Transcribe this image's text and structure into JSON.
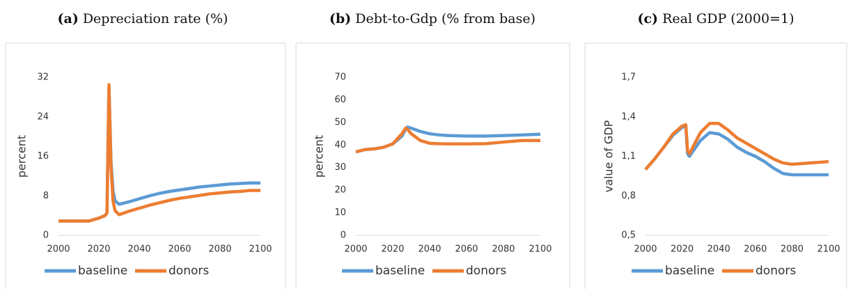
{
  "chart_data": [
    {
      "type": "line",
      "panel_label": "(a)",
      "title": "Depreciation rate (%)",
      "y_label": "percent",
      "x": [
        2000,
        2005,
        2010,
        2015,
        2020,
        2023,
        2024,
        2025,
        2026,
        2027,
        2028,
        2030,
        2035,
        2040,
        2045,
        2050,
        2055,
        2060,
        2065,
        2070,
        2075,
        2080,
        2085,
        2090,
        2095,
        2100
      ],
      "series": [
        {
          "name": "baseline",
          "color": "#5b9bd5",
          "values": [
            2.9,
            2.9,
            2.9,
            2.9,
            3.5,
            4,
            4.5,
            30,
            15,
            9,
            7,
            6.3,
            6.8,
            7.4,
            8,
            8.5,
            8.9,
            9.2,
            9.5,
            9.8,
            10,
            10.2,
            10.4,
            10.5,
            10.6,
            10.6
          ]
        },
        {
          "name": "donors",
          "color": "#ed7d31",
          "values": [
            2.9,
            2.9,
            2.9,
            2.9,
            3.5,
            4,
            4.5,
            30.5,
            14,
            7,
            5,
            4.2,
            4.9,
            5.5,
            6.1,
            6.6,
            7.1,
            7.5,
            7.8,
            8.1,
            8.4,
            8.6,
            8.8,
            8.9,
            9.1,
            9.1
          ]
        }
      ],
      "xlim": [
        2000,
        2100
      ],
      "xticks": [
        2000,
        2020,
        2040,
        2060,
        2080,
        2100
      ],
      "ylim": [
        0,
        32
      ],
      "yticks": [
        0,
        8,
        16,
        24,
        32
      ]
    },
    {
      "type": "line",
      "panel_label": "(b)",
      "title": "Debt-to-Gdp (% from base)",
      "y_label": "percent",
      "x": [
        2000,
        2005,
        2010,
        2015,
        2020,
        2025,
        2027,
        2028,
        2030,
        2035,
        2040,
        2045,
        2050,
        2060,
        2070,
        2080,
        2090,
        2100
      ],
      "series": [
        {
          "name": "baseline",
          "color": "#5b9bd5",
          "values": [
            37,
            38,
            38.3,
            39,
            40.5,
            44,
            47,
            48,
            47.5,
            46,
            45,
            44.5,
            44.2,
            44,
            44,
            44.2,
            44.5,
            44.8
          ]
        },
        {
          "name": "donors",
          "color": "#ed7d31",
          "values": [
            37,
            38,
            38.3,
            39,
            40.5,
            45,
            47.5,
            47,
            45,
            42,
            40.8,
            40.6,
            40.5,
            40.5,
            40.6,
            41.3,
            42,
            42
          ]
        }
      ],
      "xlim": [
        2000,
        2100
      ],
      "xticks": [
        2000,
        2020,
        2040,
        2060,
        2080,
        2100
      ],
      "ylim": [
        0,
        70
      ],
      "yticks": [
        0,
        10,
        20,
        30,
        40,
        50,
        60,
        70
      ]
    },
    {
      "type": "line",
      "panel_label": "(c)",
      "title": "Real GDP (2000=1)",
      "y_label": "value of GDP",
      "x": [
        2000,
        2005,
        2010,
        2015,
        2020,
        2022,
        2023,
        2024,
        2027,
        2030,
        2035,
        2040,
        2045,
        2050,
        2055,
        2060,
        2065,
        2070,
        2075,
        2080,
        2090,
        2100
      ],
      "series": [
        {
          "name": "baseline",
          "color": "#5b9bd5",
          "values": [
            1.0,
            1.08,
            1.17,
            1.26,
            1.32,
            1.33,
            1.12,
            1.1,
            1.16,
            1.22,
            1.28,
            1.27,
            1.23,
            1.17,
            1.13,
            1.1,
            1.06,
            1.01,
            0.97,
            0.96,
            0.96,
            0.96
          ]
        },
        {
          "name": "donors",
          "color": "#ed7d31",
          "values": [
            1.0,
            1.08,
            1.17,
            1.27,
            1.33,
            1.34,
            1.14,
            1.12,
            1.2,
            1.28,
            1.35,
            1.35,
            1.3,
            1.24,
            1.2,
            1.16,
            1.12,
            1.08,
            1.05,
            1.04,
            1.05,
            1.06
          ]
        }
      ],
      "xlim": [
        2000,
        2100
      ],
      "xticks": [
        2000,
        2020,
        2040,
        2060,
        2080,
        2100
      ],
      "ylim": [
        0.5,
        1.7
      ],
      "yticks": [
        {
          "value": 0.5,
          "label": "0,5"
        },
        {
          "value": 0.8,
          "label": "0,8"
        },
        {
          "value": 1.1,
          "label": "1,1"
        },
        {
          "value": 1.4,
          "label": "1,4"
        },
        {
          "value": 1.7,
          "label": "1,7"
        }
      ]
    }
  ]
}
